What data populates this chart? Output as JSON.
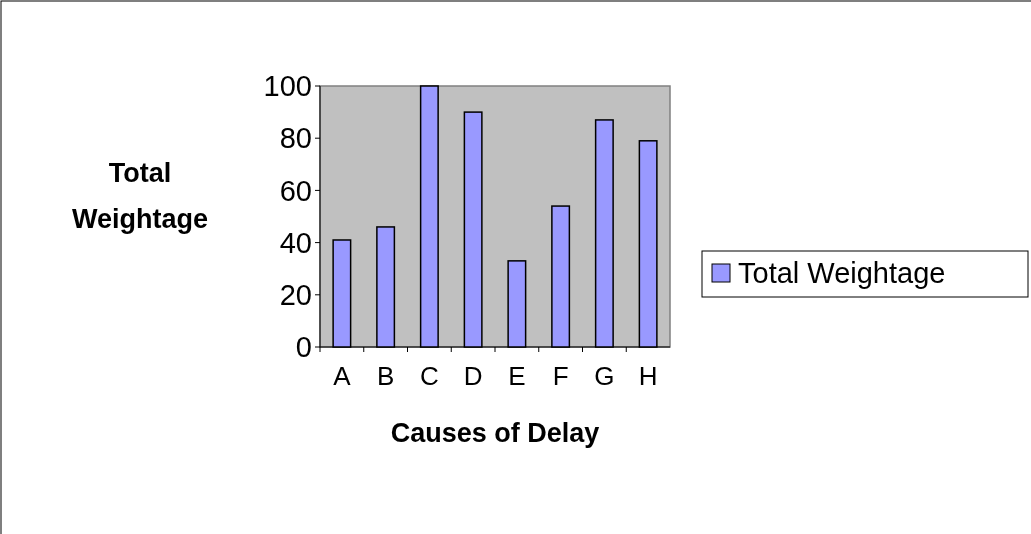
{
  "chart_data": {
    "type": "bar",
    "xlabel": "Causes of Delay",
    "ylabel": "Total Weightage",
    "categories": [
      "A",
      "B",
      "C",
      "D",
      "E",
      "F",
      "G",
      "H"
    ],
    "series": [
      {
        "name": "Total Weightage",
        "color": "#9999ff",
        "values": [
          41,
          46,
          100,
          90,
          33,
          54,
          87,
          79
        ]
      }
    ],
    "ylim": [
      0,
      100
    ],
    "yticks": [
      0,
      20,
      40,
      60,
      80,
      100
    ],
    "grid": false,
    "legend": "right"
  }
}
